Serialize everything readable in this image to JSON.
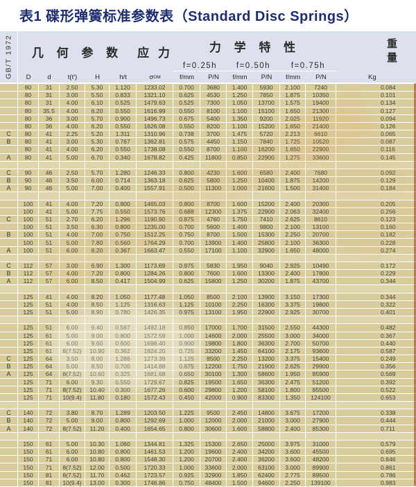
{
  "title": "表1 碟形弹簧标准参数表（Standard Disc Springs）",
  "colors": {
    "title_text": "#1d2d6f",
    "header_bg": "#dce1ed",
    "cell_bg": "#d9cd9e",
    "separator_bg": "#ded5ab",
    "grid_line": "#ffffff",
    "body_text": "#3f3d33",
    "page_edge": "#993d24"
  },
  "header": {
    "standard": "GB/T 1972",
    "geometry": "几 何 参 数",
    "stress": "应 力",
    "mechanical": "力 学 特 性",
    "weight": "重量",
    "deflections": [
      "f=0.25h",
      "f=0.50h",
      "f=0.75h"
    ],
    "geom_columns": [
      "D",
      "d",
      "t(t')",
      "H",
      "h/t"
    ],
    "sigma": {
      "base": "σ",
      "sub": "OM"
    },
    "force_col": {
      "f": "f/mm",
      "p": "P/N"
    },
    "weight_unit": "Kg"
  },
  "table": {
    "groups": [
      [
        [
          "",
          "80",
          "31",
          "2.50",
          "5.30",
          "1.120",
          "1233.02",
          "0.700",
          "3680",
          "1.400",
          "5930",
          "2.100",
          "7240",
          "0.084"
        ],
        [
          "",
          "80",
          "31",
          "3.00",
          "5.50",
          "0.833",
          "1321.10",
          "0.625",
          "4530",
          "1.250",
          "7850",
          "1.875",
          "10350",
          "0.101"
        ],
        [
          "",
          "80",
          "31",
          "4.00",
          "6.10",
          "0.525",
          "1479.63",
          "0.525",
          "7300",
          "1.050",
          "13700",
          "1.575",
          "19400",
          "0.134"
        ],
        [
          "",
          "80",
          "35.5",
          "4.00",
          "6.20",
          "0.550",
          "1616.99",
          "0.550",
          "8100",
          "1.100",
          "15100",
          "1.650",
          "21300",
          "0.127"
        ],
        [
          "",
          "80",
          "36",
          "3.00",
          "5.70",
          "0.900",
          "1496.73",
          "0.675",
          "5400",
          "1.350",
          "9200",
          "2.025",
          "11920",
          "0.094"
        ],
        [
          "",
          "80",
          "36",
          "4.00",
          "6.20",
          "0.550",
          "1626.08",
          "0.550",
          "8200",
          "1.100",
          "15200",
          "1.650",
          "21400",
          "0.126"
        ],
        [
          "C",
          "80",
          "41",
          "2.25",
          "5.20",
          "1.311",
          "1310.96",
          "0.738",
          "3700",
          "1.475",
          "5720",
          "2.213",
          "6610",
          "0.065"
        ],
        [
          "B",
          "80",
          "41",
          "3.00",
          "5.30",
          "0.767",
          "1362.81",
          "0.575",
          "4450",
          "1.150",
          "7840",
          "1.725",
          "10520",
          "0.087"
        ],
        [
          "",
          "80",
          "41",
          "4.00",
          "6.20",
          "0.550",
          "1738.08",
          "0.550",
          "8700",
          "1.100",
          "16200",
          "1.650",
          "22900",
          "0.116"
        ],
        [
          "A",
          "80",
          "41",
          "5.00",
          "6.70",
          "0.340",
          "1678.82",
          "0.425",
          "11800",
          "0.850",
          "22900",
          "1.275",
          "33600",
          "0.145"
        ]
      ],
      [
        [
          "C",
          "90",
          "46",
          "2.50",
          "5.70",
          "1.280",
          "1246.33",
          "0.800",
          "4230",
          "1.600",
          "6580",
          "2.400",
          "7680",
          "0.092"
        ],
        [
          "B",
          "90",
          "46",
          "3.50",
          "6.00",
          "0.714",
          "1363.18",
          "0.625",
          "5800",
          "1.250",
          "10400",
          "1.875",
          "14200",
          "0.129"
        ],
        [
          "A",
          "90",
          "46",
          "5.00",
          "7.00",
          "0.400",
          "1557.91",
          "0.500",
          "11300",
          "1.000",
          "21600",
          "1.500",
          "31400",
          "0.184"
        ]
      ],
      [
        [
          "",
          "100",
          "41",
          "4.00",
          "7.20",
          "0.800",
          "1465.03",
          "0.800",
          "8700",
          "1.600",
          "15200",
          "2.400",
          "20300",
          "0.205"
        ],
        [
          "",
          "100",
          "41",
          "5.00",
          "7.75",
          "0.550",
          "1573.76",
          "0.688",
          "12300",
          "1.375",
          "22900",
          "2.063",
          "32400",
          "0.256"
        ],
        [
          "C",
          "100",
          "51",
          "2.70",
          "6.20",
          "1.296",
          "1190.90",
          "0.875",
          "4760",
          "1.750",
          "7410",
          "2.625",
          "8610",
          "0.123"
        ],
        [
          "",
          "100",
          "51",
          "3.50",
          "6.30",
          "0.800",
          "1235.00",
          "0.700",
          "5600",
          "1.400",
          "9800",
          "2.100",
          "13100",
          "0.160"
        ],
        [
          "B",
          "100",
          "51",
          "4.00",
          "7.00",
          "0.750",
          "1512.25",
          "0.750",
          "8700",
          "1.500",
          "15300",
          "2.250",
          "20700",
          "0.182"
        ],
        [
          "",
          "100",
          "51",
          "5.00",
          "7.80",
          "0.560",
          "1764.29",
          "0.700",
          "13900",
          "1.400",
          "25800",
          "2.100",
          "36300",
          "0.228"
        ],
        [
          "A",
          "100",
          "51",
          "6.00",
          "8.20",
          "0.367",
          "1663.47",
          "0.550",
          "17100",
          "1.100",
          "32900",
          "1.650",
          "48000",
          "0.274"
        ]
      ],
      [
        [
          "C",
          "112",
          "57",
          "3.00",
          "6.90",
          "1.300",
          "1173.69",
          "0.975",
          "5830",
          "1.950",
          "9040",
          "2.925",
          "10490",
          "0.172"
        ],
        [
          "B",
          "112",
          "57",
          "4.00",
          "7.20",
          "0.800",
          "1284.26",
          "0.800",
          "7600",
          "1.600",
          "13300",
          "2.400",
          "17800",
          "0.229"
        ],
        [
          "A",
          "112",
          "57",
          "6.00",
          "8.50",
          "0.417",
          "1504.99",
          "0.625",
          "15800",
          "1.250",
          "30200",
          "1.875",
          "43700",
          "0.344"
        ]
      ],
      [
        [
          "",
          "125",
          "41",
          "4.00",
          "8.20",
          "1.050",
          "1177.48",
          "1.050",
          "8500",
          "2.100",
          "13900",
          "3.150",
          "17300",
          "0.344"
        ],
        [
          "",
          "125",
          "51",
          "4.00",
          "8.50",
          "1.125",
          "1316.63",
          "1.125",
          "10100",
          "2.250",
          "16300",
          "3.375",
          "19800",
          "0.322"
        ],
        [
          "",
          "125",
          "51",
          "5.00",
          "8.90",
          "0.780",
          "1426.35",
          "0.975",
          "13100",
          "1.950",
          "22900",
          "2.925",
          "30700",
          "0.401"
        ]
      ],
      [
        [
          "",
          "125",
          "51",
          "6.00",
          "9.40",
          "0.567",
          "1492.18",
          "0.850",
          "17000",
          "1.700",
          "31500",
          "2.550",
          "44300",
          "0.482"
        ],
        [
          "",
          "125",
          "61",
          "5.00",
          "9.00",
          "0.800",
          "1572.59",
          "1.000",
          "14600",
          "2.000",
          "25500",
          "3.000",
          "34000",
          "0.367"
        ],
        [
          "",
          "125",
          "61",
          "6.00",
          "9.60",
          "0.600",
          "1698.40",
          "0.900",
          "19800",
          "1.800",
          "36300",
          "2.700",
          "50700",
          "0.440"
        ],
        [
          "",
          "125",
          "61",
          "8(7.52)",
          "10.90",
          "0.362",
          "1824.20",
          "0.725",
          "33200",
          "1.450",
          "64100",
          "2.175",
          "93600",
          "0.587"
        ],
        [
          "C",
          "125",
          "64",
          "3.50",
          "8.00",
          "1.286",
          "1273.39",
          "1.125",
          "8500",
          "2.250",
          "13200",
          "3.375",
          "15400",
          "0.249"
        ],
        [
          "B",
          "125",
          "64",
          "5.00",
          "8.50",
          "0.700",
          "1414.88",
          "0.875",
          "12200",
          "1.750",
          "21900",
          "2.625",
          "29900",
          "0.356"
        ],
        [
          "A",
          "125",
          "64",
          "8(7.52)",
          "10.60",
          "0.325",
          "1681.68",
          "0.650",
          "30100",
          "1.300",
          "58600",
          "1.950",
          "85900",
          "0.569"
        ],
        [
          "",
          "125",
          "71",
          "6.00",
          "9.30",
          "0.550",
          "1729.67",
          "0.825",
          "19500",
          "1.650",
          "36300",
          "2.475",
          "51200",
          "0.392"
        ],
        [
          "",
          "125",
          "71",
          "8(7.52)",
          "10.40",
          "0.300",
          "1677.26",
          "0.600",
          "29800",
          "1.200",
          "58100",
          "1.800",
          "85500",
          "0.522"
        ],
        [
          "",
          "125",
          "71",
          "10(9.4)",
          "11.80",
          "0.180",
          "1572.43",
          "0.450",
          "42000",
          "0.900",
          "83300",
          "1.350",
          "124100",
          "0.653"
        ]
      ],
      [
        [
          "C",
          "140",
          "72",
          "3.80",
          "8.70",
          "1.289",
          "1203.50",
          "1.225",
          "9500",
          "2.450",
          "14800",
          "3.675",
          "17200",
          "0.338"
        ],
        [
          "B",
          "140",
          "72",
          "5.00",
          "9.00",
          "0.800",
          "1292.69",
          "1.000",
          "12000",
          "2.000",
          "21000",
          "3.000",
          "27900",
          "0.444"
        ],
        [
          "A",
          "140",
          "72",
          "8(7.52)",
          "11.20",
          "0.400",
          "1654.65",
          "0.800",
          "30600",
          "1.600",
          "58800",
          "2.400",
          "85300",
          "0.711"
        ]
      ],
      [
        [
          "",
          "150",
          "61",
          "5.00",
          "10.30",
          "1.060",
          "1344.81",
          "1.325",
          "15300",
          "2.650",
          "25000",
          "3.975",
          "31000",
          "0.579"
        ],
        [
          "",
          "150",
          "61",
          "6.00",
          "10.80",
          "0.800",
          "1461.53",
          "1.200",
          "19600",
          "2.400",
          "34200",
          "3.600",
          "45500",
          "0.695"
        ],
        [
          "",
          "150",
          "71",
          "6.00",
          "10.80",
          "0.800",
          "1548.30",
          "1.200",
          "20700",
          "2.400",
          "36200",
          "3.600",
          "48200",
          "0.646"
        ],
        [
          "",
          "150",
          "71",
          "8(7.52)",
          "12.00",
          "0.500",
          "1720.33",
          "1.000",
          "33600",
          "2.000",
          "63100",
          "3.000",
          "89900",
          "0.861"
        ],
        [
          "",
          "150",
          "81",
          "8(7.52)",
          "11.70",
          "0.462",
          "1723.57",
          "0.925",
          "32900",
          "1.850",
          "62400",
          "2.775",
          "89500",
          "0.786"
        ],
        [
          "",
          "150",
          "81",
          "10(9.4)",
          "13.00",
          "0.300",
          "1746.86",
          "0.750",
          "48400",
          "1.500",
          "94600",
          "2.250",
          "139100",
          "0.983"
        ]
      ]
    ]
  }
}
